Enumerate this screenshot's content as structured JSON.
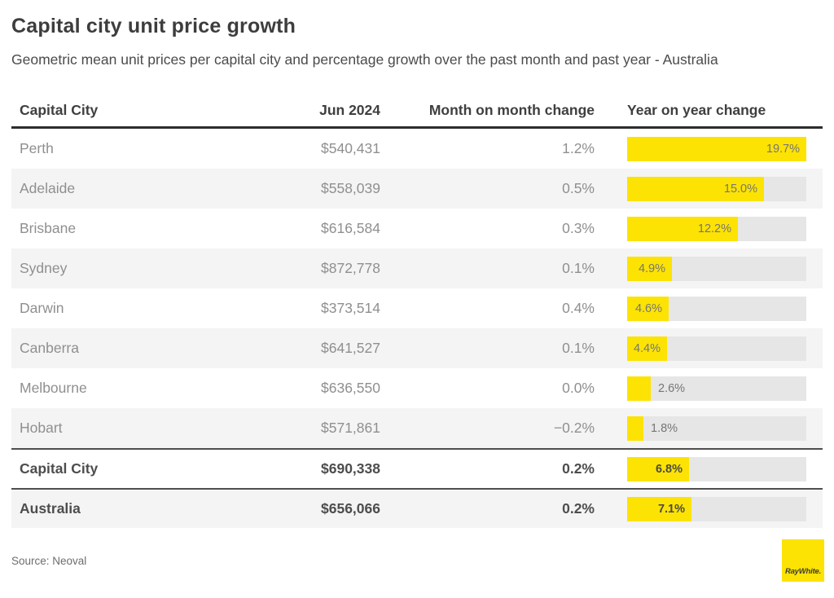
{
  "header": {
    "title": "Capital city unit price growth",
    "subtitle": "Geometric mean unit prices per capital city and percentage growth over the past month and past year - Australia"
  },
  "table": {
    "columns": [
      "Capital City",
      "Jun 2024",
      "Month on month change",
      "Year on year change"
    ],
    "bar_scale_max": 19.7,
    "rows": [
      {
        "city": "Perth",
        "price": "$540,431",
        "mom": "1.2%",
        "yoy": 19.7,
        "yoy_label": "19.7%",
        "bold": false
      },
      {
        "city": "Adelaide",
        "price": "$558,039",
        "mom": "0.5%",
        "yoy": 15.0,
        "yoy_label": "15.0%",
        "bold": false
      },
      {
        "city": "Brisbane",
        "price": "$616,584",
        "mom": "0.3%",
        "yoy": 12.2,
        "yoy_label": "12.2%",
        "bold": false
      },
      {
        "city": "Sydney",
        "price": "$872,778",
        "mom": "0.1%",
        "yoy": 4.9,
        "yoy_label": "4.9%",
        "bold": false
      },
      {
        "city": "Darwin",
        "price": "$373,514",
        "mom": "0.4%",
        "yoy": 4.6,
        "yoy_label": "4.6%",
        "bold": false
      },
      {
        "city": "Canberra",
        "price": "$641,527",
        "mom": "0.1%",
        "yoy": 4.4,
        "yoy_label": "4.4%",
        "bold": false
      },
      {
        "city": "Melbourne",
        "price": "$636,550",
        "mom": "0.0%",
        "yoy": 2.6,
        "yoy_label": "2.6%",
        "bold": false
      },
      {
        "city": "Hobart",
        "price": "$571,861",
        "mom": "−0.2%",
        "yoy": 1.8,
        "yoy_label": "1.8%",
        "bold": false
      },
      {
        "city": "Capital City",
        "price": "$690,338",
        "mom": "0.2%",
        "yoy": 6.8,
        "yoy_label": "6.8%",
        "bold": true
      },
      {
        "city": "Australia",
        "price": "$656,066",
        "mom": "0.2%",
        "yoy": 7.1,
        "yoy_label": "7.1%",
        "bold": true
      }
    ]
  },
  "footer": {
    "source": "Source: Neoval",
    "logo_text": "RayWhite."
  },
  "colors": {
    "accent_yellow": "#fce303",
    "bar_track": "#e6e6e6",
    "row_stripe": "#f4f4f4"
  },
  "chart_data": {
    "type": "bar",
    "title": "Capital city unit price growth",
    "subtitle": "Geometric mean unit prices per capital city and percentage growth over the past month and past year - Australia",
    "categories": [
      "Perth",
      "Adelaide",
      "Brisbane",
      "Sydney",
      "Darwin",
      "Canberra",
      "Melbourne",
      "Hobart",
      "Capital City",
      "Australia"
    ],
    "series": [
      {
        "name": "Jun 2024 geometric mean unit price ($)",
        "values": [
          540431,
          558039,
          616584,
          872778,
          373514,
          641527,
          636550,
          571861,
          690338,
          656066
        ]
      },
      {
        "name": "Month on month change (%)",
        "values": [
          1.2,
          0.5,
          0.3,
          0.1,
          0.4,
          0.1,
          0.0,
          -0.2,
          0.2,
          0.2
        ]
      },
      {
        "name": "Year on year change (%)",
        "values": [
          19.7,
          15.0,
          12.2,
          4.9,
          4.6,
          4.4,
          2.6,
          1.8,
          6.8,
          7.1
        ]
      }
    ],
    "bar_series_plotted": "Year on year change (%)",
    "xlim": [
      0,
      19.7
    ],
    "grid": false,
    "legend": "none",
    "annotations": "Yellow horizontal bars with value labels; bold summary rows for Capital City and Australia",
    "source": "Source: Neoval"
  }
}
